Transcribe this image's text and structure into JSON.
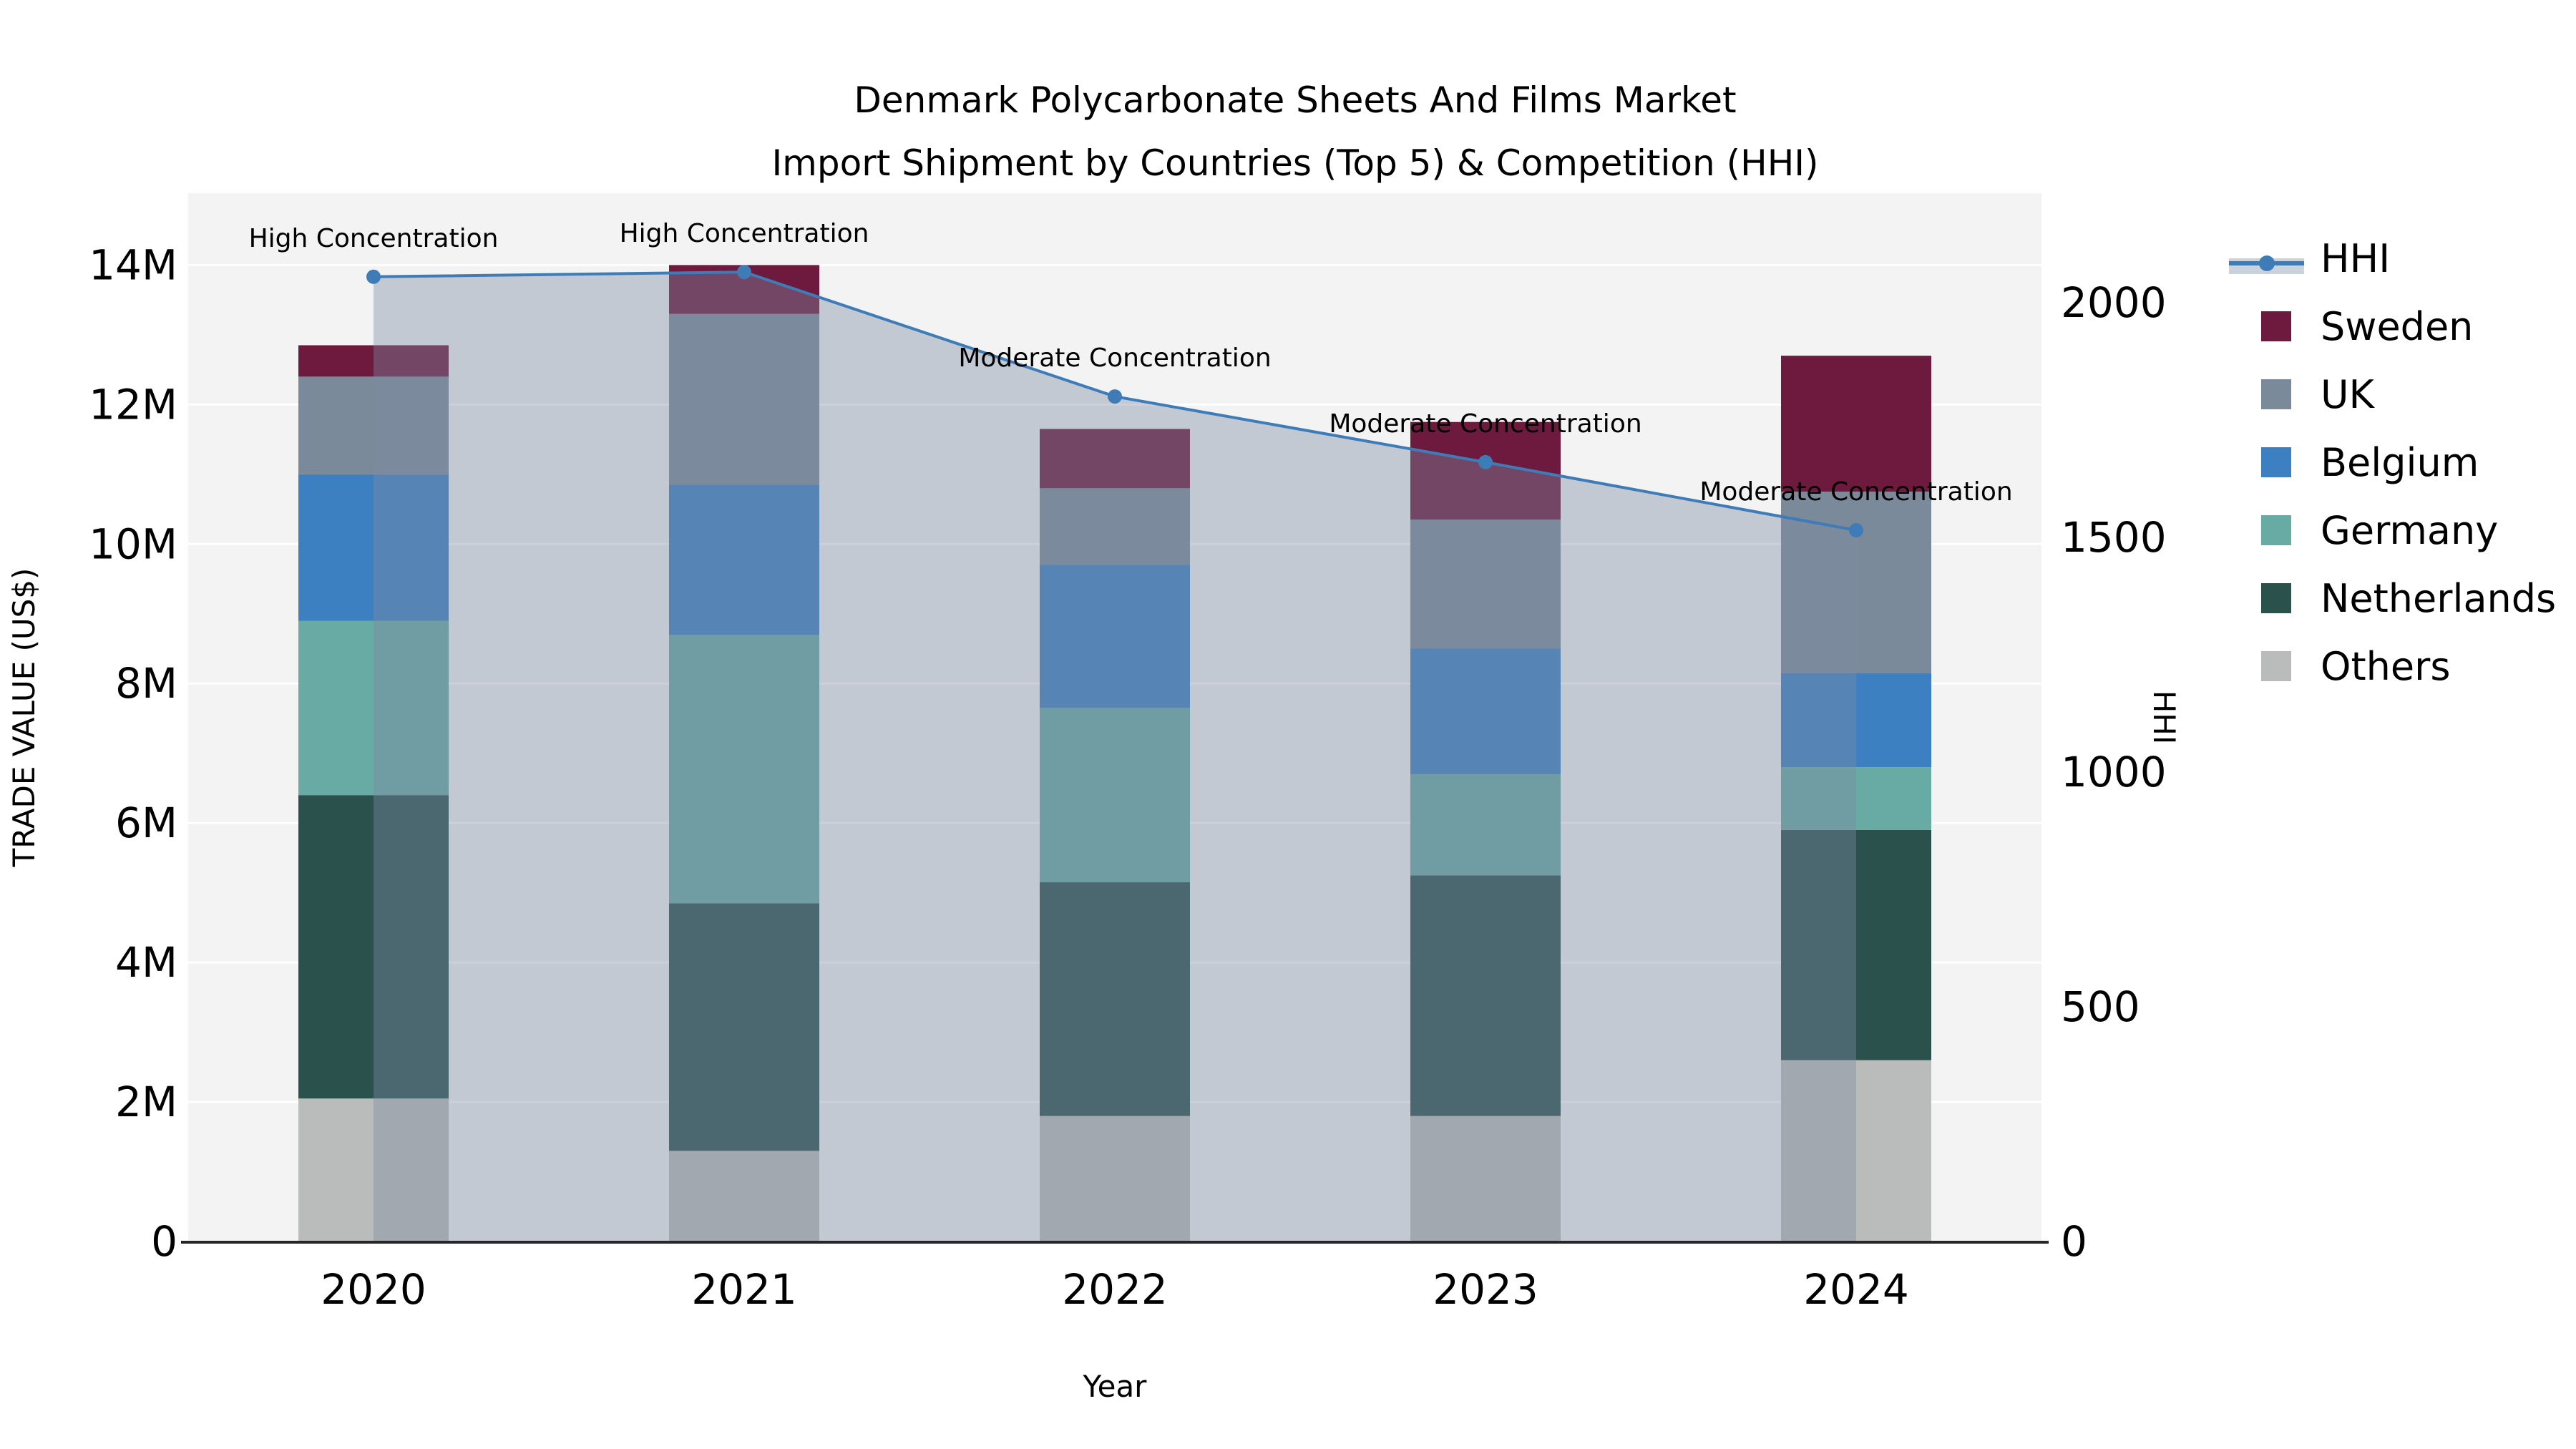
{
  "title": {
    "line1": "Denmark Polycarbonate Sheets And Films Market",
    "line2": "Import Shipment by Countries (Top 5) & Competition (HHI)"
  },
  "chart_data": {
    "type": "bar",
    "stacked": true,
    "subtype": "stacked-bars-with-secondary-line",
    "categories": [
      "2020",
      "2021",
      "2022",
      "2023",
      "2024"
    ],
    "xlabel": "Year",
    "ylabel_left": "TRADE VALUE (US$)",
    "ylabel_right": "HHI",
    "y_left": {
      "unit": "US$ millions",
      "max": 15.03,
      "ticks": [
        {
          "v": 0,
          "label": "0"
        },
        {
          "v": 2,
          "label": "2M"
        },
        {
          "v": 4,
          "label": "4M"
        },
        {
          "v": 6,
          "label": "6M"
        },
        {
          "v": 8,
          "label": "8M"
        },
        {
          "v": 10,
          "label": "10M"
        },
        {
          "v": 12,
          "label": "12M"
        },
        {
          "v": 14,
          "label": "14M"
        }
      ]
    },
    "y_right": {
      "max": 2233,
      "ticks": [
        {
          "v": 0,
          "label": "0"
        },
        {
          "v": 500,
          "label": "500"
        },
        {
          "v": 1000,
          "label": "1000"
        },
        {
          "v": 1500,
          "label": "1500"
        },
        {
          "v": 2000,
          "label": "2000"
        }
      ]
    },
    "series": [
      {
        "name": "Others",
        "color": "#b9bcba",
        "values": [
          2.05,
          1.3,
          1.8,
          1.8,
          2.6
        ]
      },
      {
        "name": "Netherlands",
        "color": "#2b514d",
        "values": [
          4.35,
          3.55,
          3.35,
          3.45,
          3.3
        ]
      },
      {
        "name": "Germany",
        "color": "#68aaa4",
        "values": [
          2.5,
          3.85,
          2.5,
          1.45,
          0.9
        ]
      },
      {
        "name": "Belgium",
        "color": "#3d80c2",
        "values": [
          2.1,
          2.15,
          2.05,
          1.8,
          1.35
        ]
      },
      {
        "name": "UK",
        "color": "#7a8a9a",
        "values": [
          1.4,
          2.45,
          1.1,
          1.85,
          2.6
        ]
      },
      {
        "name": "Sweden",
        "color": "#6e1a3e",
        "values": [
          0.45,
          0.7,
          0.85,
          1.4,
          1.95
        ]
      }
    ],
    "bar_totals": [
      12.85,
      14.0,
      11.65,
      11.75,
      12.7
    ],
    "hhi_line": {
      "name": "HHI",
      "color": "#3e7cb8",
      "values": [
        2055,
        2065,
        1800,
        1660,
        1515
      ],
      "area_fill": "rgba(125,138,162,0.40)",
      "legend_band_fill": "#ccd2dc"
    },
    "annotations": [
      {
        "category": "2020",
        "text": "High Concentration"
      },
      {
        "category": "2021",
        "text": "High Concentration"
      },
      {
        "category": "2022",
        "text": "Moderate Concentration"
      },
      {
        "category": "2023",
        "text": "Moderate Concentration"
      },
      {
        "category": "2024",
        "text": "Moderate Concentration"
      }
    ],
    "legend": [
      "HHI",
      "Sweden",
      "UK",
      "Belgium",
      "Germany",
      "Netherlands",
      "Others"
    ],
    "legend_position": "right",
    "grid": true,
    "colors": {
      "plot_bg": "#f2f3f2",
      "grid": "#ffffff",
      "spine": "#262626",
      "text": "#000000",
      "annotation_text": "#111111"
    }
  }
}
